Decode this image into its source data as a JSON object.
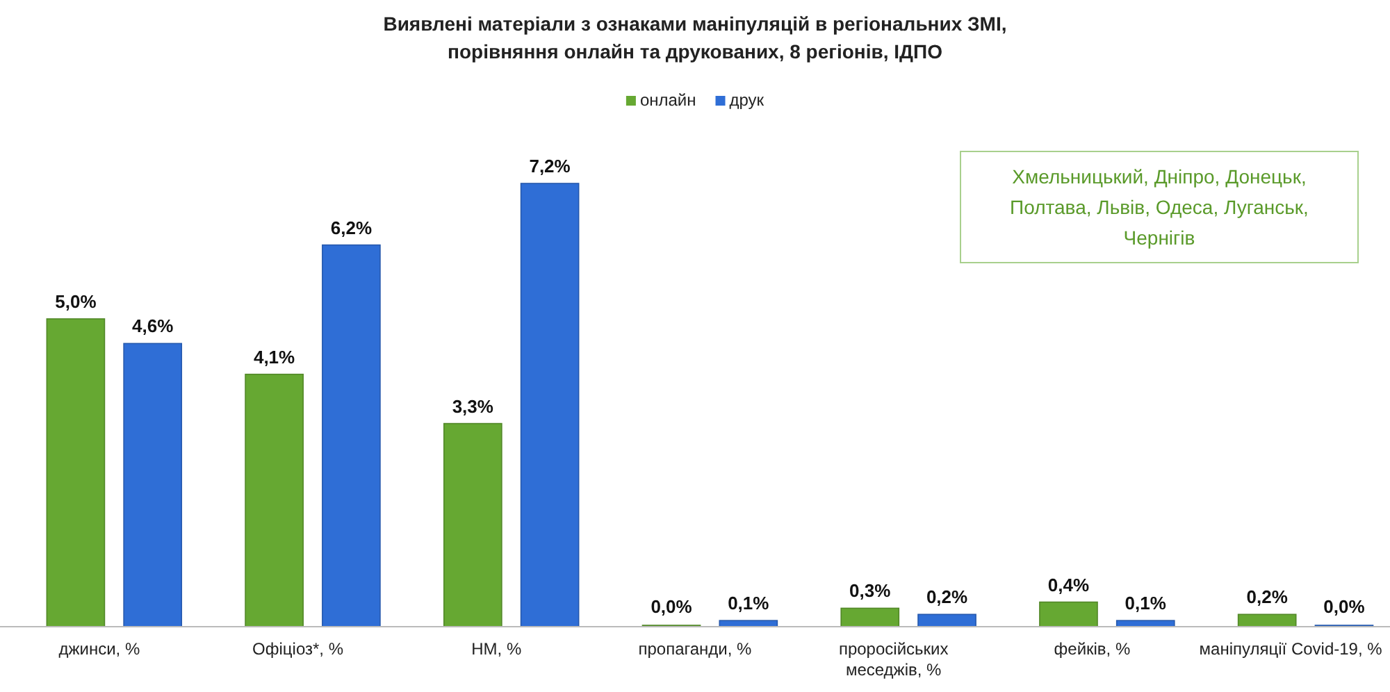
{
  "chart_data": {
    "type": "bar",
    "title": "Виявлені матеріали з ознаками маніпуляцій в регіональних ЗМІ,\nпорівняння онлайн та друкованих, 8 регіонів, ІДПО",
    "categories": [
      "джинси, %",
      "Офіціоз*, %",
      "НМ, %",
      "пропаганди, %",
      "проросійських меседжів, %",
      "фейків, %",
      "маніпуляції Covid-19, %"
    ],
    "series": [
      {
        "name": "онлайн",
        "color": "#66a832",
        "values": [
          5.0,
          4.1,
          3.3,
          0.0,
          0.3,
          0.4,
          0.2
        ],
        "value_labels": [
          "5,0%",
          "4,1%",
          "3,3%",
          "0,0%",
          "0,3%",
          "0,4%",
          "0,2%"
        ]
      },
      {
        "name": "друк",
        "color": "#2f6ed6",
        "values": [
          4.6,
          6.2,
          7.2,
          0.1,
          0.2,
          0.1,
          0.0
        ],
        "value_labels": [
          "4,6%",
          "6,2%",
          "7,2%",
          "0,1%",
          "0,2%",
          "0,1%",
          "0,0%"
        ]
      }
    ],
    "annotations": [
      "Хмельницький, Дніпро, Донецьк, Полтава, Львів, Одеса, Луганськ, Чернігів"
    ],
    "legend": "top"
  }
}
